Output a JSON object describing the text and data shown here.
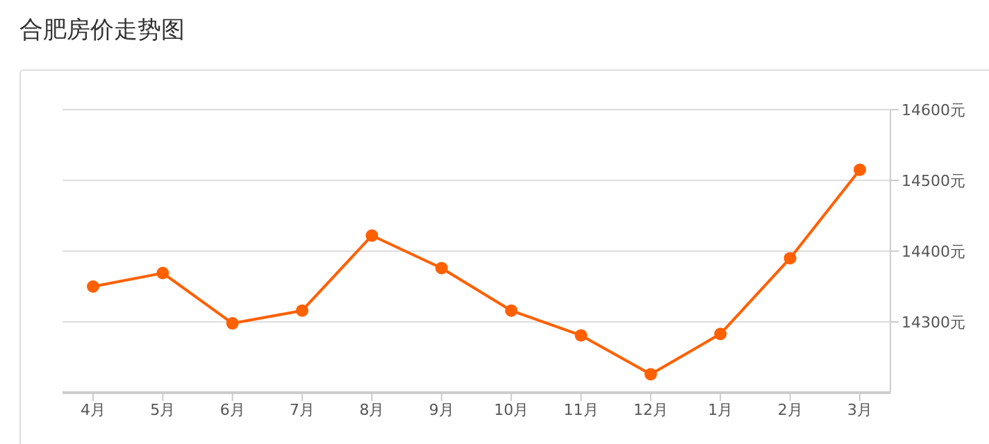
{
  "chart_data": {
    "type": "line",
    "title": "合肥房价走势图",
    "categories": [
      "4月",
      "5月",
      "6月",
      "7月",
      "8月",
      "9月",
      "10月",
      "11月",
      "12月",
      "1月",
      "2月",
      "3月"
    ],
    "series": [
      {
        "color": "#ff6000",
        "values": [
          14350,
          14369,
          14298,
          14316,
          14422,
          14376,
          14316,
          14281,
          14226,
          14283,
          14390,
          14515
        ]
      }
    ],
    "ylim": [
      14200,
      14600
    ],
    "yticks": [
      {
        "value": 14300,
        "label": "14300元"
      },
      {
        "value": 14400,
        "label": "14400元"
      },
      {
        "value": 14500,
        "label": "14500元"
      },
      {
        "value": 14600,
        "label": "14600元"
      }
    ],
    "grid": "y",
    "marker": "circle",
    "line_style": "solid",
    "legend": false
  }
}
